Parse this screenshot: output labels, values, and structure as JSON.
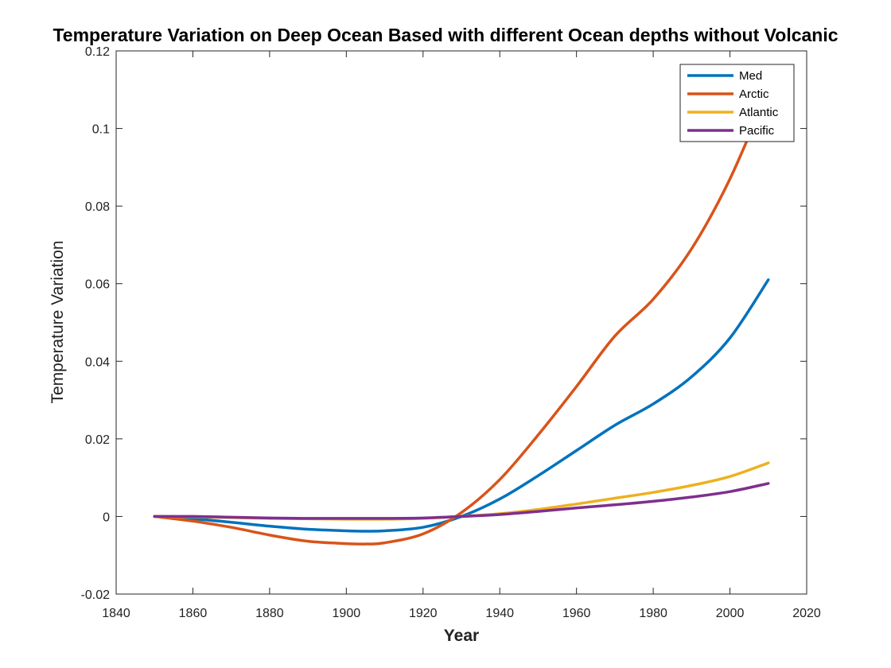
{
  "chart_data": {
    "type": "line",
    "title": "Temperature Variation on Deep Ocean Based with different Ocean depths without Volcanic",
    "xlabel": "Year",
    "ylabel": "Temperature Variation",
    "xlim": [
      1840,
      2020
    ],
    "ylim": [
      -0.02,
      0.12
    ],
    "x_ticks": [
      1840,
      1860,
      1880,
      1900,
      1920,
      1940,
      1960,
      1980,
      2000,
      2020
    ],
    "y_ticks": [
      -0.02,
      0,
      0.02,
      0.04,
      0.06,
      0.08,
      0.1,
      0.12
    ],
    "y_tick_labels": [
      "-0.02",
      "0",
      "0.02",
      "0.04",
      "0.06",
      "0.08",
      "0.1",
      "0.12"
    ],
    "grid": false,
    "legend_position": "top-right",
    "series": [
      {
        "name": "Med",
        "color": "#0072BD",
        "x": [
          1850,
          1860,
          1870,
          1880,
          1890,
          1900,
          1905,
          1910,
          1920,
          1930,
          1940,
          1950,
          1960,
          1970,
          1980,
          1990,
          2000,
          2010
        ],
        "y": [
          0,
          -0.0006,
          -0.0015,
          -0.0025,
          -0.0033,
          -0.0037,
          -0.0038,
          -0.0037,
          -0.0028,
          0,
          0.0045,
          0.0105,
          0.017,
          0.0235,
          0.029,
          0.036,
          0.046,
          0.061
        ]
      },
      {
        "name": "Arctic",
        "color": "#D95319",
        "x": [
          1850,
          1860,
          1870,
          1880,
          1890,
          1900,
          1905,
          1910,
          1920,
          1930,
          1940,
          1950,
          1960,
          1970,
          1980,
          1990,
          2000,
          2010
        ],
        "y": [
          0,
          -0.0012,
          -0.0028,
          -0.0048,
          -0.0064,
          -0.007,
          -0.0071,
          -0.0068,
          -0.0045,
          0.001,
          0.0095,
          0.021,
          0.0335,
          0.0465,
          0.056,
          0.069,
          0.087,
          0.11
        ]
      },
      {
        "name": "Atlantic",
        "color": "#EDB120",
        "x": [
          1850,
          1860,
          1870,
          1880,
          1890,
          1900,
          1910,
          1920,
          1930,
          1940,
          1950,
          1960,
          1970,
          1980,
          1990,
          2000,
          2010
        ],
        "y": [
          0,
          -0.0001,
          -0.0003,
          -0.0005,
          -0.0006,
          -0.0007,
          -0.0007,
          -0.0005,
          0,
          0.0007,
          0.0018,
          0.0032,
          0.0047,
          0.0062,
          0.008,
          0.0103,
          0.0138
        ]
      },
      {
        "name": "Pacific",
        "color": "#7E2F8E",
        "x": [
          1850,
          1860,
          1870,
          1880,
          1890,
          1900,
          1910,
          1920,
          1930,
          1940,
          1950,
          1960,
          1970,
          1980,
          1990,
          2000,
          2010
        ],
        "y": [
          0,
          0,
          -0.0002,
          -0.0004,
          -0.0005,
          -0.0005,
          -0.0005,
          -0.0004,
          0,
          0.0005,
          0.0013,
          0.0022,
          0.003,
          0.0039,
          0.005,
          0.0064,
          0.0085
        ]
      }
    ]
  }
}
